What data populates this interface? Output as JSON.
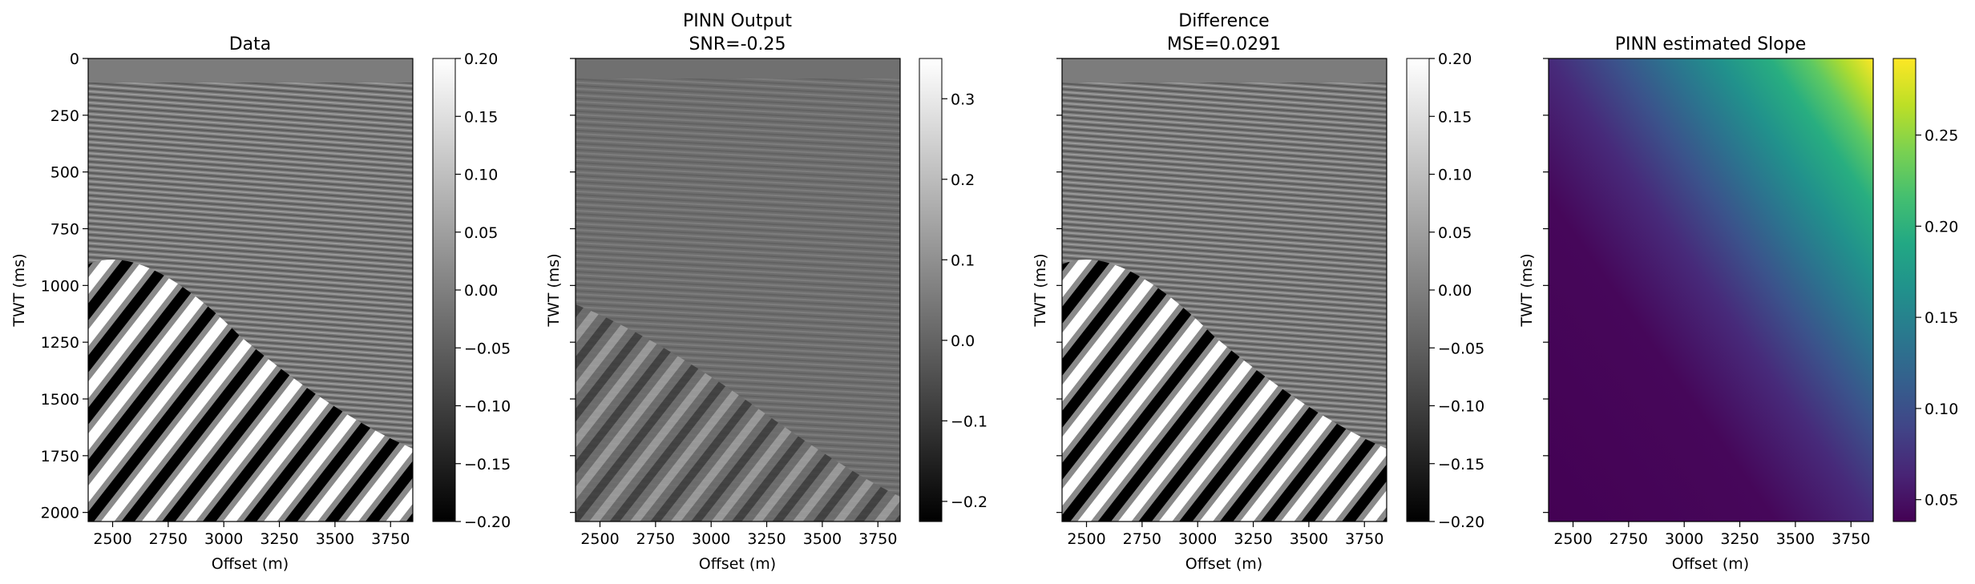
{
  "chart_data": [
    {
      "type": "heatmap",
      "title": "Data",
      "xlabel": "Offset (m)",
      "ylabel": "TWT (ms)",
      "xlim": [
        2390,
        3850
      ],
      "ylim": [
        2040,
        0
      ],
      "xticks": [
        2500,
        2750,
        3000,
        3250,
        3500,
        3750
      ],
      "xtick_labels": [
        "2500",
        "2750",
        "3000",
        "3250",
        "3500",
        "3750"
      ],
      "yticks": [
        0,
        250,
        500,
        750,
        1000,
        1250,
        1500,
        1750,
        2000
      ],
      "ytick_labels": [
        "0",
        "250",
        "500",
        "750",
        "1000",
        "1250",
        "1500",
        "1750",
        "2000"
      ],
      "colormap": "gray",
      "clim": [
        -0.2,
        0.2
      ],
      "colorbar_ticks": [
        0.2,
        0.15,
        0.1,
        0.05,
        0.0,
        -0.05,
        -0.1,
        -0.15,
        -0.2
      ],
      "colorbar_labels": [
        "0.20",
        "0.15",
        "0.10",
        "0.05",
        "0.00",
        "−0.05",
        "−0.10",
        "−0.15",
        "−0.20"
      ]
    },
    {
      "type": "heatmap",
      "title": "PINN Output",
      "subtitle": "SNR=-0.25",
      "xlabel": "Offset (m)",
      "ylabel": "TWT (ms)",
      "xlim": [
        2390,
        3850
      ],
      "ylim": [
        2040,
        0
      ],
      "xticks": [
        2500,
        2750,
        3000,
        3250,
        3500,
        3750
      ],
      "xtick_labels": [
        "2500",
        "2750",
        "3000",
        "3250",
        "3500",
        "3750"
      ],
      "yticks": [
        0,
        250,
        500,
        750,
        1000,
        1250,
        1500,
        1750,
        2000
      ],
      "colormap": "gray",
      "clim": [
        -0.225,
        0.35
      ],
      "colorbar_ticks": [
        0.3,
        0.2,
        0.1,
        0.0,
        -0.1,
        -0.2
      ],
      "colorbar_labels": [
        "0.3",
        "0.2",
        "0.1",
        "0.0",
        "−0.1",
        "−0.2"
      ]
    },
    {
      "type": "heatmap",
      "title": "Difference",
      "subtitle": "MSE=0.0291",
      "xlabel": "Offset (m)",
      "ylabel": "TWT (ms)",
      "xlim": [
        2390,
        3850
      ],
      "ylim": [
        2040,
        0
      ],
      "xticks": [
        2500,
        2750,
        3000,
        3250,
        3500,
        3750
      ],
      "xtick_labels": [
        "2500",
        "2750",
        "3000",
        "3250",
        "3500",
        "3750"
      ],
      "yticks": [
        0,
        250,
        500,
        750,
        1000,
        1250,
        1500,
        1750,
        2000
      ],
      "colormap": "gray",
      "clim": [
        -0.2,
        0.2
      ],
      "colorbar_ticks": [
        0.2,
        0.15,
        0.1,
        0.05,
        0.0,
        -0.05,
        -0.1,
        -0.15,
        -0.2
      ],
      "colorbar_labels": [
        "0.20",
        "0.15",
        "0.10",
        "0.05",
        "0.00",
        "−0.05",
        "−0.10",
        "−0.15",
        "−0.20"
      ]
    },
    {
      "type": "heatmap",
      "title": "PINN estimated Slope",
      "xlabel": "Offset (m)",
      "ylabel": "TWT (ms)",
      "xlim": [
        2390,
        3850
      ],
      "ylim": [
        2040,
        0
      ],
      "xticks": [
        2500,
        2750,
        3000,
        3250,
        3500,
        3750
      ],
      "xtick_labels": [
        "2500",
        "2750",
        "3000",
        "3250",
        "3500",
        "3750"
      ],
      "yticks": [
        0,
        250,
        500,
        750,
        1000,
        1250,
        1500,
        1750,
        2000
      ],
      "colormap": "viridis",
      "clim": [
        0.038,
        0.292
      ],
      "colorbar_ticks": [
        0.25,
        0.2,
        0.15,
        0.1,
        0.05
      ],
      "colorbar_labels": [
        "0.25",
        "0.20",
        "0.15",
        "0.10",
        "0.05"
      ]
    }
  ]
}
